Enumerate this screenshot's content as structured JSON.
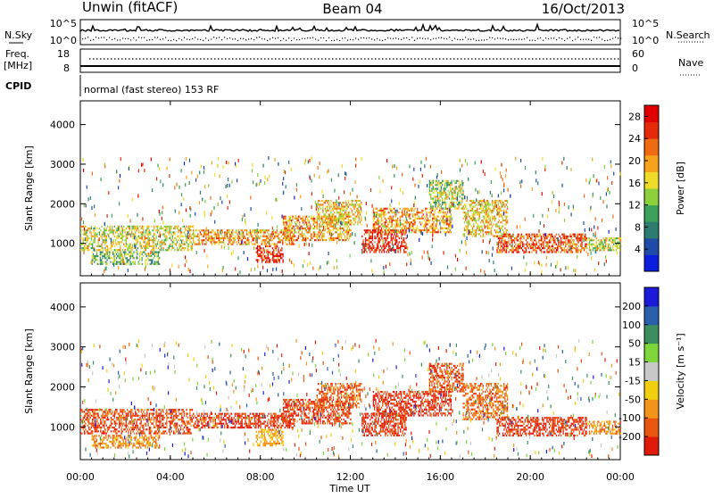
{
  "header": {
    "station": "Unwin (fitACF)",
    "beam": "Beam 04",
    "date": "16/Oct/2013"
  },
  "noise_panel": {
    "left_label": "N.Sky",
    "right_label": "N.Search",
    "left_ticks": [
      "10^5",
      "10^0"
    ],
    "right_ticks": [
      "10^5",
      "10^0"
    ]
  },
  "freq_panel": {
    "left_label_line1": "Freq.",
    "left_label_line2": "[MHz]",
    "right_label": "Nave",
    "left_ticks": [
      "18",
      "8"
    ],
    "right_ticks": [
      "60",
      "0"
    ]
  },
  "cpid": {
    "label": "CPID",
    "text": "normal (fast stereo) 153 RF"
  },
  "x_axis": {
    "label": "Time UT",
    "ticks": [
      "00:00",
      "04:00",
      "08:00",
      "12:00",
      "16:00",
      "20:00",
      "00:00"
    ]
  },
  "colors": {
    "power_scale": [
      "#0a1ee0",
      "#1f4aa8",
      "#2e7b6f",
      "#3aa05a",
      "#8cd13c",
      "#f0dc28",
      "#f7a21c",
      "#f06a12",
      "#e52a0a",
      "#e00000"
    ],
    "velocity_scale": [
      "#1a1ad8",
      "#2a5fae",
      "#3c8e5e",
      "#7ed63a",
      "#c8c8c8",
      "#f2d010",
      "#f2951a",
      "#ea5510",
      "#e21a0a"
    ]
  },
  "chart_data": [
    {
      "type": "heatmap",
      "title": "",
      "quantity": "Power",
      "xlabel": "",
      "ylabel": "Slant Range [km]",
      "x_range_hours": [
        0,
        24
      ],
      "ylim": [
        180,
        4600
      ],
      "y_ticks": [
        1000,
        2000,
        3000,
        4000
      ],
      "colorbar": {
        "label": "Power [dB]",
        "ticks": [
          4,
          8,
          12,
          16,
          20,
          24,
          28
        ],
        "range": [
          0,
          30
        ]
      },
      "echo_bands": [
        {
          "start_h": 0.0,
          "end_h": 5.0,
          "range_km": [
            850,
            1450
          ],
          "level": 16
        },
        {
          "start_h": 0.5,
          "end_h": 3.5,
          "range_km": [
            500,
            800
          ],
          "level": 12
        },
        {
          "start_h": 5.0,
          "end_h": 9.5,
          "range_km": [
            1000,
            1350
          ],
          "level": 20
        },
        {
          "start_h": 7.8,
          "end_h": 9.0,
          "range_km": [
            550,
            950
          ],
          "level": 26
        },
        {
          "start_h": 9.0,
          "end_h": 12.0,
          "range_km": [
            1100,
            1700
          ],
          "level": 20
        },
        {
          "start_h": 10.5,
          "end_h": 12.5,
          "range_km": [
            1500,
            2100
          ],
          "level": 18
        },
        {
          "start_h": 12.5,
          "end_h": 14.5,
          "range_km": [
            800,
            1350
          ],
          "level": 27
        },
        {
          "start_h": 13.0,
          "end_h": 16.5,
          "range_km": [
            1300,
            1900
          ],
          "level": 20
        },
        {
          "start_h": 15.5,
          "end_h": 17.0,
          "range_km": [
            1900,
            2600
          ],
          "level": 14
        },
        {
          "start_h": 17.0,
          "end_h": 19.0,
          "range_km": [
            1200,
            2100
          ],
          "level": 18
        },
        {
          "start_h": 18.5,
          "end_h": 22.5,
          "range_km": [
            800,
            1250
          ],
          "level": 24
        },
        {
          "start_h": 22.5,
          "end_h": 24.0,
          "range_km": [
            850,
            1150
          ],
          "level": 16
        }
      ]
    },
    {
      "type": "heatmap",
      "title": "",
      "quantity": "Velocity",
      "xlabel": "Time UT",
      "ylabel": "Slant Range [km]",
      "x_range_hours": [
        0,
        24
      ],
      "ylim": [
        180,
        4600
      ],
      "y_ticks": [
        1000,
        2000,
        3000,
        4000
      ],
      "colorbar": {
        "label": "Velocity [m s⁻¹]",
        "ticks": [
          "200",
          "100",
          "50",
          "15",
          "-15",
          "-50",
          "-100",
          "-200"
        ],
        "range": [
          -250,
          250
        ]
      },
      "echo_bands": [
        {
          "start_h": 0.0,
          "end_h": 5.0,
          "range_km": [
            850,
            1450
          ],
          "level": -180
        },
        {
          "start_h": 0.5,
          "end_h": 3.5,
          "range_km": [
            500,
            800
          ],
          "level": -120
        },
        {
          "start_h": 5.0,
          "end_h": 9.5,
          "range_km": [
            1000,
            1350
          ],
          "level": -200
        },
        {
          "start_h": 7.8,
          "end_h": 9.0,
          "range_km": [
            550,
            950
          ],
          "level": -90
        },
        {
          "start_h": 9.0,
          "end_h": 12.0,
          "range_km": [
            1100,
            1700
          ],
          "level": -190
        },
        {
          "start_h": 10.5,
          "end_h": 12.5,
          "range_km": [
            1500,
            2100
          ],
          "level": -160
        },
        {
          "start_h": 12.5,
          "end_h": 14.5,
          "range_km": [
            800,
            1350
          ],
          "level": -200
        },
        {
          "start_h": 13.0,
          "end_h": 16.5,
          "range_km": [
            1300,
            1900
          ],
          "level": -210
        },
        {
          "start_h": 15.5,
          "end_h": 17.0,
          "range_km": [
            1900,
            2600
          ],
          "level": -170
        },
        {
          "start_h": 17.0,
          "end_h": 19.0,
          "range_km": [
            1200,
            2100
          ],
          "level": -150
        },
        {
          "start_h": 18.5,
          "end_h": 22.5,
          "range_km": [
            800,
            1250
          ],
          "level": -200
        },
        {
          "start_h": 22.5,
          "end_h": 24.0,
          "range_km": [
            850,
            1150
          ],
          "level": -120
        }
      ]
    }
  ]
}
